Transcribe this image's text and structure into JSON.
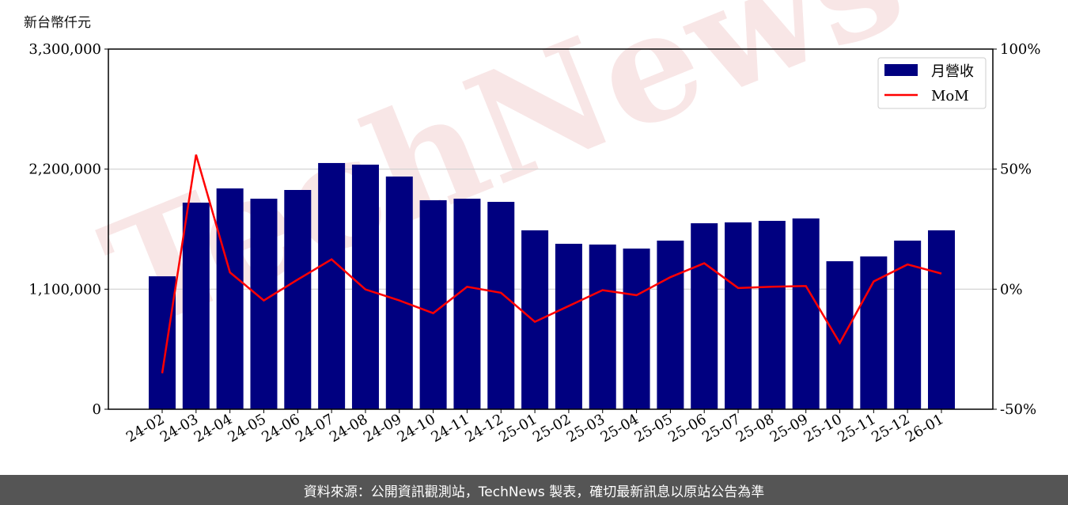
{
  "chart_data": {
    "type": "bar+line",
    "ylabel": "新台幣仟元",
    "categories": [
      "24-02",
      "24-03",
      "24-04",
      "24-05",
      "24-06",
      "24-07",
      "24-08",
      "24-09",
      "24-10",
      "24-11",
      "24-12",
      "25-01",
      "25-02",
      "25-03",
      "25-04",
      "25-05",
      "25-06",
      "25-07",
      "25-08",
      "25-09",
      "25-10",
      "25-11",
      "25-12",
      "26-01"
    ],
    "series": [
      {
        "name": "月營收",
        "axis": "left",
        "type": "bar",
        "color": "#000080",
        "values": [
          1218000,
          1893000,
          2023000,
          1929000,
          2009000,
          2256000,
          2241000,
          2132000,
          1915000,
          1929000,
          1900000,
          1639000,
          1516000,
          1509000,
          1472000,
          1545000,
          1704000,
          1712000,
          1726000,
          1748000,
          1356000,
          1400000,
          1545000,
          1639000
        ]
      },
      {
        "name": "MoM",
        "axis": "right",
        "type": "line",
        "color": "#ff0000",
        "values": [
          -35,
          56,
          7,
          -4.7,
          4,
          12.4,
          -0.1,
          -4.7,
          -10,
          1,
          -1.5,
          -13.6,
          -7,
          -0.4,
          -2.5,
          5,
          10.8,
          0.5,
          1,
          1.3,
          -22.4,
          3.2,
          10.3,
          6.5
        ]
      }
    ],
    "left_axis": {
      "ylim": [
        0,
        3300000
      ],
      "ticks": [
        0,
        1100000,
        2200000,
        3300000
      ],
      "tick_labels": [
        "0",
        "1,100,000",
        "2,200,000",
        "3,300,000"
      ]
    },
    "right_axis": {
      "ylim": [
        -50,
        100
      ],
      "ticks": [
        -50,
        0,
        50,
        100
      ],
      "tick_labels": [
        "-50%",
        "0%",
        "50%",
        "100%"
      ]
    },
    "grid": "horizontal",
    "legend": "top-right"
  },
  "watermark": "TechNews",
  "footer": "資料來源：公開資訊觀測站，TechNews 製表，確切最新訊息以原站公告為準"
}
